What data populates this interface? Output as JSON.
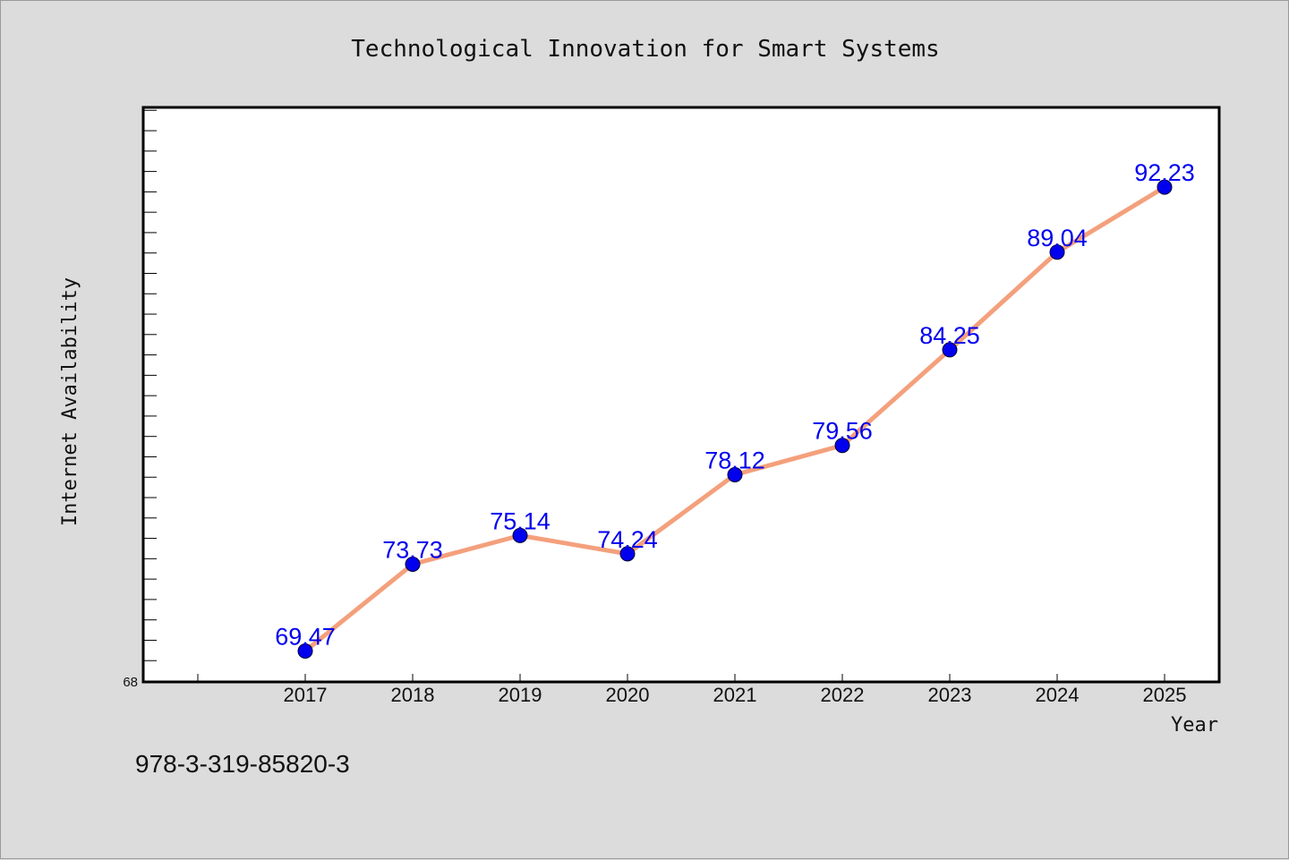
{
  "chart_data": {
    "type": "line",
    "title": "Technological Innovation for Smart Systems",
    "xlabel": "Year",
    "ylabel": "Internet Availability",
    "categories": [
      "2017",
      "2018",
      "2019",
      "2020",
      "2021",
      "2022",
      "2023",
      "2024",
      "2025"
    ],
    "series": [
      {
        "values": [
          69.47,
          73.73,
          75.14,
          74.24,
          78.12,
          79.56,
          84.25,
          89.04,
          92.23
        ],
        "value_labels": [
          "69.47",
          "73.73",
          "75.14",
          "74.24",
          "78.12",
          "79.56",
          "84.25",
          "89.04",
          "92.23"
        ]
      }
    ],
    "ylim": [
      68,
      96.1
    ],
    "yticks": [
      "68"
    ],
    "grid": false,
    "line_color": "#f4a07c",
    "marker_color": "#0000ee",
    "label_color": "#0000ee"
  },
  "footer": {
    "isbn": "978-3-319-85820-3"
  }
}
